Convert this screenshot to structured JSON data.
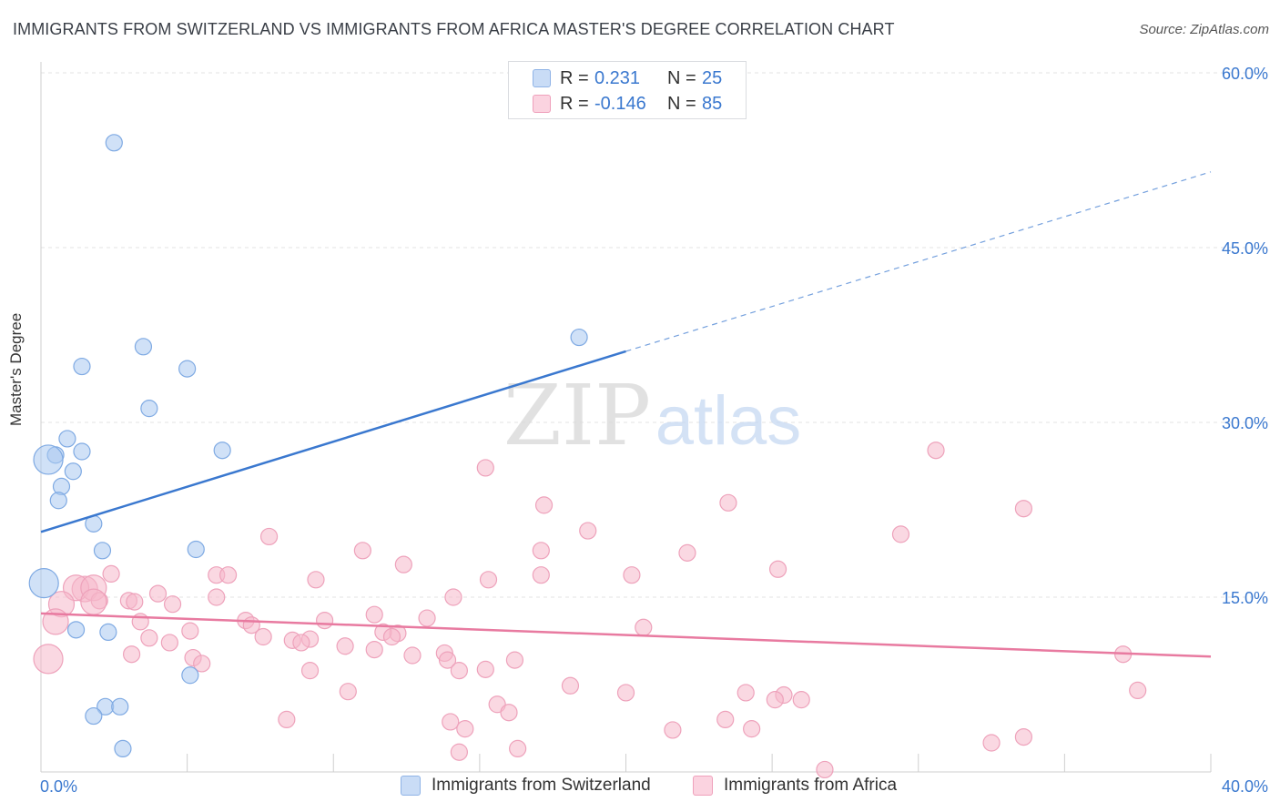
{
  "header": {
    "title": "IMMIGRANTS FROM SWITZERLAND VS IMMIGRANTS FROM AFRICA MASTER'S DEGREE CORRELATION CHART",
    "source": "Source: ZipAtlas.com"
  },
  "watermark": {
    "zip": "ZIP",
    "atlas": "atlas"
  },
  "legend_top": {
    "rows": [
      {
        "r_label": "R =",
        "r_value": "0.231",
        "n_label": "N =",
        "n_value": "25",
        "color": "#a9c8f0"
      },
      {
        "r_label": "R =",
        "r_value": "-0.146",
        "n_label": "N =",
        "n_value": "85",
        "color": "#f5b8cb"
      }
    ]
  },
  "legend_bottom": {
    "items": [
      {
        "label": "Immigrants from Switzerland",
        "color": "#a9c8f0"
      },
      {
        "label": "Immigrants from Africa",
        "color": "#f5b8cb"
      }
    ]
  },
  "chart_data": {
    "type": "scatter",
    "title": "IMMIGRANTS FROM SWITZERLAND VS IMMIGRANTS FROM AFRICA MASTER'S DEGREE CORRELATION CHART",
    "xlabel": "",
    "ylabel": "Master's Degree",
    "xlim": [
      0,
      40
    ],
    "ylim": [
      0,
      60
    ],
    "x_ticks_labeled": [
      "0.0%",
      "40.0%"
    ],
    "y_ticks": [
      15,
      30,
      45,
      60
    ],
    "y_tick_labels": [
      "15.0%",
      "30.0%",
      "45.0%",
      "60.0%"
    ],
    "grid": true,
    "legend_position": "bottom",
    "colors": {
      "switzerland": "#3a78cf",
      "africa": "#e87aa0",
      "switzerland_fill": "#a9c8f0",
      "africa_fill": "#f5b8cb"
    },
    "series": [
      {
        "name": "Immigrants from Switzerland",
        "r": 0.231,
        "n": 25,
        "trend": {
          "x0": 0,
          "y0": 20.6,
          "x1": 20,
          "y1": 36.1,
          "dashed_to_x": 40,
          "dashed_to_y": 51.5
        },
        "points": [
          [
            2.5,
            54.0
          ],
          [
            1.4,
            34.8
          ],
          [
            3.5,
            36.5
          ],
          [
            5.0,
            34.6
          ],
          [
            3.7,
            31.2
          ],
          [
            0.9,
            28.6
          ],
          [
            1.4,
            27.5
          ],
          [
            0.5,
            27.2
          ],
          [
            0.25,
            26.8
          ],
          [
            1.1,
            25.8
          ],
          [
            0.7,
            24.5
          ],
          [
            0.6,
            23.3
          ],
          [
            6.2,
            27.6
          ],
          [
            18.4,
            37.3
          ],
          [
            1.8,
            21.3
          ],
          [
            2.1,
            19.0
          ],
          [
            5.3,
            19.1
          ],
          [
            0.1,
            16.2
          ],
          [
            1.2,
            12.2
          ],
          [
            2.3,
            12.0
          ],
          [
            5.1,
            8.3
          ],
          [
            2.2,
            5.6
          ],
          [
            2.7,
            5.6
          ],
          [
            1.8,
            4.8
          ],
          [
            2.8,
            2.0
          ]
        ]
      },
      {
        "name": "Immigrants from Africa",
        "r": -0.146,
        "n": 85,
        "trend": {
          "x0": 0,
          "y0": 13.6,
          "x1": 40,
          "y1": 9.9
        },
        "points": [
          [
            15.2,
            26.1
          ],
          [
            30.6,
            27.6
          ],
          [
            33.6,
            22.6
          ],
          [
            17.2,
            22.9
          ],
          [
            23.5,
            23.1
          ],
          [
            29.4,
            20.4
          ],
          [
            18.7,
            20.7
          ],
          [
            7.8,
            20.2
          ],
          [
            11.0,
            19.0
          ],
          [
            17.1,
            19.0
          ],
          [
            22.1,
            18.8
          ],
          [
            12.4,
            17.8
          ],
          [
            25.2,
            17.4
          ],
          [
            2.4,
            17.0
          ],
          [
            6.0,
            16.9
          ],
          [
            6.4,
            16.9
          ],
          [
            9.4,
            16.5
          ],
          [
            15.3,
            16.5
          ],
          [
            20.2,
            16.9
          ],
          [
            17.1,
            16.9
          ],
          [
            1.5,
            15.7
          ],
          [
            1.2,
            15.8
          ],
          [
            1.8,
            15.8
          ],
          [
            4.0,
            15.3
          ],
          [
            6.0,
            15.0
          ],
          [
            14.1,
            15.0
          ],
          [
            2.0,
            14.7
          ],
          [
            3.0,
            14.7
          ],
          [
            1.8,
            14.6
          ],
          [
            3.2,
            14.6
          ],
          [
            4.5,
            14.4
          ],
          [
            0.7,
            14.4
          ],
          [
            0.5,
            12.9
          ],
          [
            3.4,
            12.9
          ],
          [
            7.0,
            13.0
          ],
          [
            9.7,
            13.0
          ],
          [
            11.4,
            13.5
          ],
          [
            13.2,
            13.2
          ],
          [
            7.2,
            12.6
          ],
          [
            12.2,
            11.9
          ],
          [
            20.6,
            12.4
          ],
          [
            5.1,
            12.1
          ],
          [
            3.7,
            11.5
          ],
          [
            8.6,
            11.3
          ],
          [
            9.2,
            11.4
          ],
          [
            11.7,
            12.0
          ],
          [
            12.0,
            11.6
          ],
          [
            4.4,
            11.1
          ],
          [
            7.6,
            11.6
          ],
          [
            8.9,
            11.1
          ],
          [
            10.4,
            10.8
          ],
          [
            11.4,
            10.5
          ],
          [
            13.8,
            10.2
          ],
          [
            3.1,
            10.1
          ],
          [
            5.2,
            9.8
          ],
          [
            12.7,
            10.0
          ],
          [
            0.25,
            9.7
          ],
          [
            5.5,
            9.3
          ],
          [
            13.9,
            9.6
          ],
          [
            16.2,
            9.6
          ],
          [
            14.3,
            8.7
          ],
          [
            15.2,
            8.8
          ],
          [
            37.0,
            10.1
          ],
          [
            9.2,
            8.7
          ],
          [
            18.1,
            7.4
          ],
          [
            20.0,
            6.8
          ],
          [
            24.1,
            6.8
          ],
          [
            25.4,
            6.6
          ],
          [
            10.5,
            6.9
          ],
          [
            15.6,
            5.8
          ],
          [
            26.0,
            6.2
          ],
          [
            16.0,
            5.1
          ],
          [
            37.5,
            7.0
          ],
          [
            14.0,
            4.3
          ],
          [
            8.4,
            4.5
          ],
          [
            25.1,
            6.2
          ],
          [
            23.4,
            4.5
          ],
          [
            14.5,
            3.7
          ],
          [
            24.3,
            3.7
          ],
          [
            21.6,
            3.6
          ],
          [
            33.6,
            3.0
          ],
          [
            32.5,
            2.5
          ],
          [
            16.3,
            2.0
          ],
          [
            14.3,
            1.7
          ],
          [
            26.8,
            0.2
          ]
        ]
      }
    ]
  }
}
